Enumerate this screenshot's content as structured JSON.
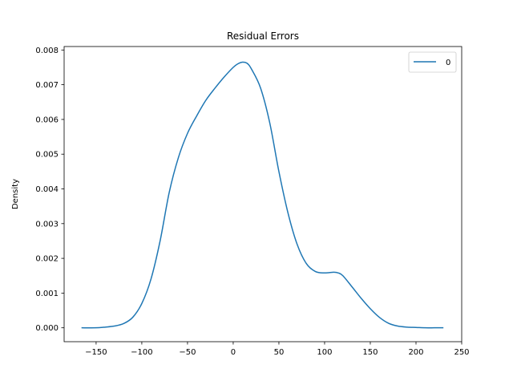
{
  "chart_data": {
    "type": "line",
    "title": "Residual Errors",
    "xlabel": "",
    "ylabel": "Density",
    "xlim": [
      -185,
      250
    ],
    "ylim": [
      -0.0004,
      0.0081
    ],
    "xticks": [
      -150,
      -100,
      -50,
      0,
      50,
      100,
      150,
      200,
      250
    ],
    "xtick_labels": [
      "−150",
      "−100",
      "−50",
      "0",
      "50",
      "100",
      "150",
      "200",
      "250"
    ],
    "yticks": [
      0.0,
      0.001,
      0.002,
      0.003,
      0.004,
      0.005,
      0.006,
      0.007,
      0.008
    ],
    "ytick_labels": [
      "0.000",
      "0.001",
      "0.002",
      "0.003",
      "0.004",
      "0.005",
      "0.006",
      "0.007",
      "0.008"
    ],
    "grid": false,
    "legend": {
      "position": "top-right",
      "entries": [
        "0"
      ]
    },
    "series": [
      {
        "name": "0",
        "color": "#1f77b4",
        "x": [
          -166,
          -150,
          -140,
          -130,
          -120,
          -110,
          -100,
          -90,
          -80,
          -70,
          -60,
          -50,
          -40,
          -30,
          -20,
          -10,
          0,
          5,
          10,
          15,
          20,
          30,
          40,
          50,
          60,
          70,
          80,
          90,
          100,
          110,
          115,
          120,
          130,
          140,
          150,
          160,
          170,
          180,
          190,
          200,
          210,
          220,
          230
        ],
        "y": [
          0.0,
          0.0,
          2e-05,
          5e-05,
          0.00012,
          0.0003,
          0.0007,
          0.0014,
          0.0025,
          0.0039,
          0.0049,
          0.0056,
          0.0061,
          0.00655,
          0.0069,
          0.00722,
          0.0075,
          0.0076,
          0.00765,
          0.00762,
          0.00745,
          0.0069,
          0.0059,
          0.0045,
          0.0033,
          0.0024,
          0.00185,
          0.00162,
          0.00158,
          0.0016,
          0.00158,
          0.0015,
          0.00118,
          0.00085,
          0.00055,
          0.0003,
          0.00013,
          5e-05,
          2e-05,
          1e-05,
          0.0,
          0.0,
          0.0
        ]
      }
    ]
  }
}
